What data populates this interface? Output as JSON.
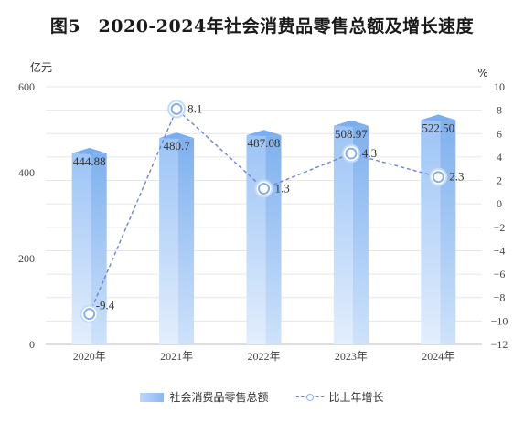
{
  "title": "图5　2020-2024年社会消费品零售总额及增长速度",
  "chart_data": {
    "type": "bar+line",
    "categories": [
      "2020年",
      "2021年",
      "2022年",
      "2023年",
      "2024年"
    ],
    "series": [
      {
        "name": "社会消费品零售总额",
        "type": "bar",
        "axis": "left",
        "values": [
          444.88,
          480.7,
          487.08,
          508.97,
          522.5
        ],
        "labels": [
          "444.88",
          "480.7",
          "487.08",
          "508.97",
          "522.50"
        ]
      },
      {
        "name": "比上年增长",
        "type": "line",
        "axis": "right",
        "values": [
          -9.4,
          8.1,
          1.3,
          4.3,
          2.3
        ],
        "labels": [
          "-9.4",
          "8.1",
          "1.3",
          "4.3",
          "2.3"
        ]
      }
    ],
    "ylabel_left": "亿元",
    "ylabel_right": "%",
    "ylim_left": [
      0,
      600
    ],
    "ylim_right": [
      -12,
      10
    ],
    "yticks_left": [
      "0",
      "200",
      "400",
      "600"
    ],
    "yticks_right": [
      "10",
      "8",
      "6",
      "4",
      "2",
      "0",
      "−2",
      "−4",
      "−6",
      "−8",
      "−10",
      "−12"
    ],
    "grid": true,
    "legend_position": "bottom",
    "colors": {
      "bar": "#8ab8f2",
      "bar_light": "#d2e5fc",
      "line": "#6f83d6",
      "marker": "#9cbff0"
    }
  },
  "legend": {
    "bar_label": "社会消费品零售总额",
    "line_label": "比上年增长"
  }
}
